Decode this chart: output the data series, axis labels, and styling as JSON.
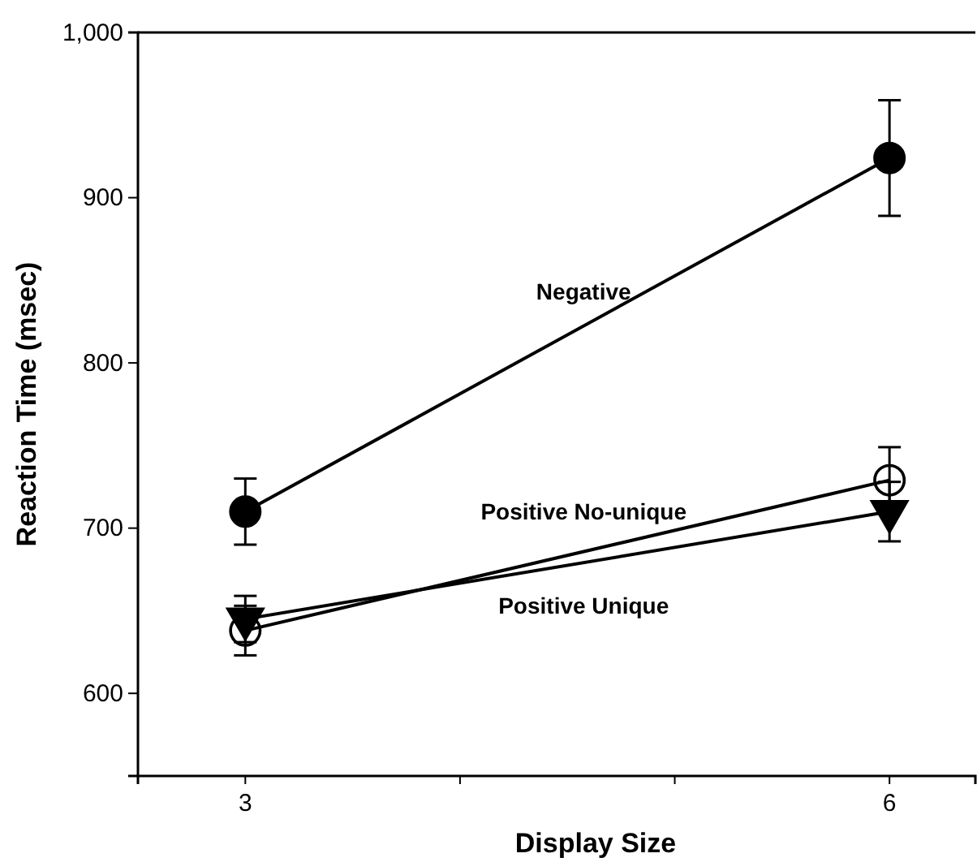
{
  "chart_data": {
    "type": "line",
    "xlabel": "Display Size",
    "ylabel": "Reaction Time (msec)",
    "x": [
      3,
      6
    ],
    "xlim": [
      2.5,
      6.4
    ],
    "xticks": [
      3,
      {
        "value": 4,
        "label": null
      },
      {
        "value": 5,
        "label": null
      },
      6
    ],
    "ylim": [
      550,
      1000
    ],
    "yticks": [
      600,
      700,
      800,
      900,
      {
        "value": 1000,
        "label": "1,000"
      }
    ],
    "grid": false,
    "legend": false,
    "line_style": "solid",
    "series": [
      {
        "name": "Negative",
        "color": "#000000",
        "marker": "circle",
        "values": [
          710,
          924
        ],
        "errors": [
          20,
          35
        ]
      },
      {
        "name": "Positive No-unique",
        "color": "#000000",
        "marker": "circle-open",
        "values": [
          638,
          729
        ],
        "errors": [
          15,
          20
        ]
      },
      {
        "name": "Positive Unique",
        "color": "#000000",
        "marker": "triangle-down",
        "values": [
          645,
          710
        ],
        "errors": [
          14,
          18
        ]
      }
    ]
  }
}
